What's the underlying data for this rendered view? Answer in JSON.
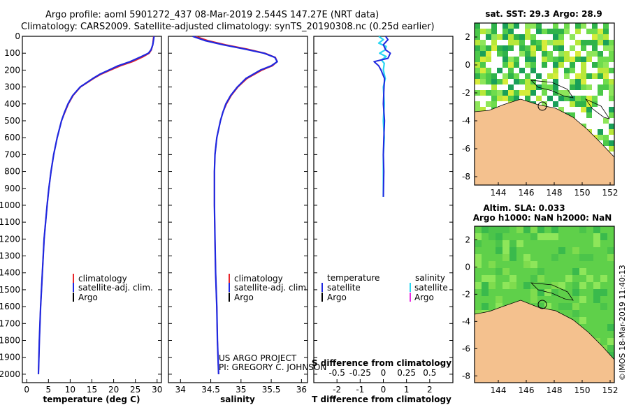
{
  "header": {
    "line1": "Argo profile: aoml 5901272_437 08-Mar-2019 2.544S 147.27E (NRT data)",
    "line2": "Climatology: CARS2009. Satellite-adjusted climatology: synTS_20190308.nc (0.25d earlier)"
  },
  "colors": {
    "climatology": "#e8262b",
    "satellite": "#1f28e0",
    "argo": "#000000",
    "sat_salinity": "#27d6f2",
    "argo_salinity": "#e82be0",
    "land": "#f4c18e",
    "ocean_green_light": "#8ee65a",
    "ocean_green_dark": "#2fb34a"
  },
  "chart_data": [
    {
      "id": "temperature",
      "type": "line",
      "xlabel": "temperature (deg C)",
      "ylabel": "",
      "xlim": [
        -1,
        31
      ],
      "ylim": [
        2050,
        0
      ],
      "xticks": [
        "0",
        "5",
        "10",
        "15",
        "20",
        "25",
        "30"
      ],
      "yticks": [
        "0",
        "100",
        "200",
        "300",
        "400",
        "500",
        "600",
        "700",
        "800",
        "900",
        "1000",
        "1100",
        "1200",
        "1300",
        "1400",
        "1500",
        "1600",
        "1700",
        "1800",
        "1900",
        "2000"
      ],
      "depth": [
        0,
        20,
        50,
        80,
        100,
        120,
        150,
        175,
        200,
        225,
        250,
        300,
        350,
        400,
        450,
        500,
        600,
        700,
        800,
        900,
        1000,
        1200,
        1400,
        1600,
        1800,
        2000
      ],
      "series": [
        {
          "name": "climatology",
          "values": [
            29.2,
            29.1,
            29.0,
            28.7,
            28.2,
            26.9,
            24.4,
            21.6,
            19.3,
            17.1,
            15.4,
            12.4,
            10.7,
            9.6,
            8.8,
            8.0,
            7.0,
            6.2,
            5.6,
            5.1,
            4.7,
            4.0,
            3.6,
            3.2,
            2.9,
            2.7
          ]
        },
        {
          "name": "satellite-adj. clim.",
          "values": [
            29.3,
            29.2,
            29.0,
            28.6,
            28.0,
            26.4,
            23.8,
            21.0,
            18.9,
            16.8,
            15.2,
            12.3,
            10.6,
            9.5,
            8.7,
            8.0,
            7.0,
            6.2,
            5.6,
            5.1,
            4.7,
            4.0,
            3.6,
            3.2,
            2.9,
            2.7
          ]
        }
      ],
      "legend": [
        "climatology",
        "satellite-adj. clim.",
        "Argo"
      ],
      "legend_location": "lower-center"
    },
    {
      "id": "salinity",
      "type": "line",
      "xlabel": "salinity",
      "xlim": [
        33.8,
        36.1
      ],
      "ylim": [
        2050,
        0
      ],
      "xticks": [
        "34",
        "34.5",
        "35",
        "35.5",
        "36"
      ],
      "depth": [
        0,
        25,
        50,
        75,
        100,
        125,
        150,
        175,
        200,
        250,
        300,
        350,
        400,
        450,
        500,
        600,
        700,
        800,
        900,
        1000,
        1200,
        1400,
        1600,
        1800,
        2000
      ],
      "series": [
        {
          "name": "climatology",
          "values": [
            34.25,
            34.45,
            34.75,
            35.1,
            35.4,
            35.57,
            35.6,
            35.52,
            35.35,
            35.1,
            34.95,
            34.84,
            34.76,
            34.7,
            34.66,
            34.6,
            34.57,
            34.56,
            34.56,
            34.56,
            34.57,
            34.58,
            34.6,
            34.61,
            34.63
          ]
        },
        {
          "name": "satellite-adj. clim.",
          "values": [
            34.2,
            34.4,
            34.7,
            35.05,
            35.38,
            35.56,
            35.6,
            35.5,
            35.32,
            35.08,
            34.94,
            34.83,
            34.75,
            34.7,
            34.66,
            34.6,
            34.57,
            34.56,
            34.56,
            34.56,
            34.57,
            34.58,
            34.6,
            34.61,
            34.63
          ]
        }
      ],
      "legend": [
        "climatology",
        "satellite-adj. clim.",
        "Argo"
      ],
      "annotations": [
        "US ARGO PROJECT",
        "PI: GREGORY C. JOHNSON"
      ]
    },
    {
      "id": "difference",
      "type": "line",
      "xlabel": "T difference from climatology",
      "xlabel2": "S difference from climatology",
      "xlim": [
        -3,
        3
      ],
      "x2lim": [
        -0.75,
        0.75
      ],
      "ylim": [
        2050,
        0
      ],
      "xticks": [
        "-2",
        "-1",
        "0",
        "1",
        "2"
      ],
      "x2ticks": [
        "-0.5",
        "-0.25",
        "0",
        "0.25",
        "0.5"
      ],
      "t_depth": [
        0,
        20,
        50,
        80,
        100,
        130,
        150,
        175,
        200,
        250,
        300,
        400,
        500,
        600,
        700,
        800,
        950
      ],
      "t_diff": [
        0.1,
        0.2,
        0.0,
        0.1,
        0.3,
        0.2,
        -0.4,
        -0.2,
        -0.1,
        0.05,
        0.03,
        0.0,
        0.05,
        0.02,
        0.0,
        0.02,
        0.0
      ],
      "s_depth": [
        0,
        20,
        40,
        60,
        80,
        100,
        120,
        140,
        160,
        200,
        250,
        300,
        400,
        500,
        600,
        700,
        800,
        950
      ],
      "s_diff": [
        -0.05,
        0.0,
        -0.05,
        0.03,
        0.02,
        -0.04,
        0.03,
        -0.02,
        0.01,
        0.0,
        0.02,
        0.0,
        0.01,
        0.0,
        0.01,
        0.0,
        0.0,
        0.0
      ],
      "legend_left_title": "temperature",
      "legend_right_title": "salinity",
      "legend_left": [
        "satellite",
        "Argo"
      ],
      "legend_right": [
        "satellite",
        "Argo"
      ]
    }
  ],
  "maps": {
    "top": {
      "title": "sat. SST: 29.3 Argo: 28.9",
      "xticks": [
        "144",
        "146",
        "148",
        "150",
        "152"
      ],
      "yticks": [
        "2",
        "0",
        "-2",
        "-4",
        "-6",
        "-8"
      ]
    },
    "bottom": {
      "title1": "Altim. SLA: 0.033",
      "title2": "Argo h1000: NaN h2000: NaN",
      "xticks": [
        "144",
        "146",
        "148",
        "150",
        "152"
      ],
      "yticks": [
        "2",
        "0",
        "-2",
        "-4",
        "-6",
        "-8"
      ]
    }
  },
  "stamp": "©IMOS 18-Mar-2019 11:40:13"
}
